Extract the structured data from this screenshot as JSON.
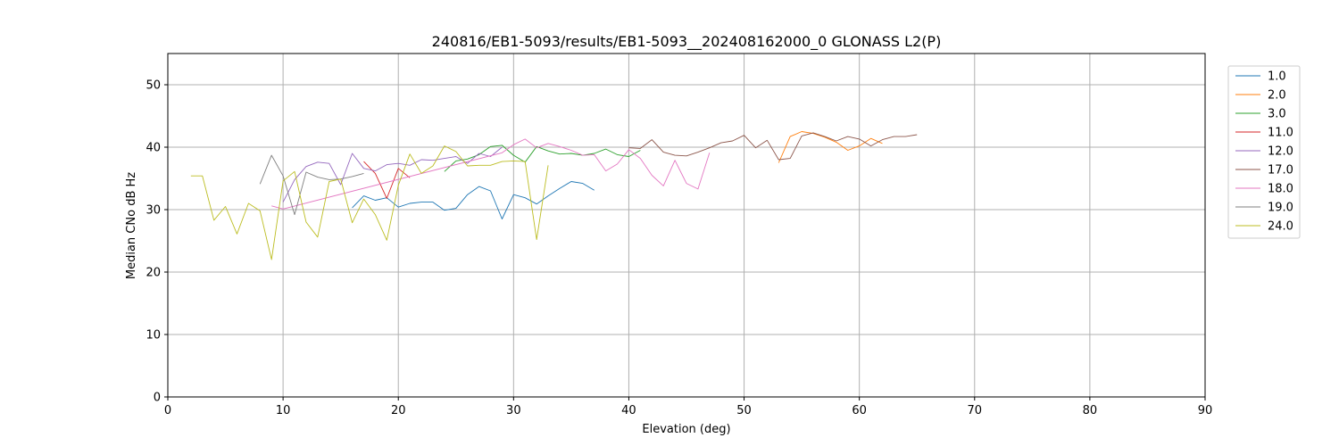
{
  "chart_data": {
    "type": "line",
    "title": "240816/EB1-5093/results/EB1-5093__202408162000_0 GLONASS L2(P)",
    "xlabel": "Elevation (deg)",
    "ylabel": "Median CNo dB Hz",
    "xlim": [
      0,
      90
    ],
    "ylim": [
      0,
      55
    ],
    "xticks": [
      0,
      10,
      20,
      30,
      40,
      50,
      60,
      70,
      80,
      90
    ],
    "yticks": [
      0,
      10,
      20,
      30,
      40,
      50
    ],
    "grid": true,
    "legend_position": "upper-right-outside",
    "series": [
      {
        "name": "1.0",
        "color": "#1f77b4",
        "x": [
          16,
          17,
          18,
          19,
          20,
          21,
          22,
          23,
          24,
          25,
          26,
          27,
          28,
          29,
          30,
          31,
          32,
          33,
          34,
          35,
          36,
          37
        ],
        "y": [
          30.3,
          32.2,
          31.5,
          31.9,
          30.4,
          31.0,
          31.2,
          31.2,
          29.9,
          30.2,
          32.4,
          33.7,
          33.0,
          28.5,
          32.4,
          31.9,
          30.9,
          32.2,
          33.4,
          34.5,
          34.2,
          33.1
        ]
      },
      {
        "name": "2.0",
        "color": "#ff7f0e",
        "x": [
          53,
          54,
          55,
          56,
          57,
          58,
          59,
          60,
          61,
          62
        ],
        "y": [
          37.5,
          41.7,
          42.5,
          42.2,
          41.6,
          40.8,
          39.5,
          40.2,
          41.4,
          40.6
        ]
      },
      {
        "name": "3.0",
        "color": "#2ca02c",
        "x": [
          24,
          25,
          26,
          27,
          28,
          29,
          30,
          31,
          32,
          33,
          34,
          35,
          36,
          37,
          38,
          39,
          40,
          41
        ],
        "y": [
          36.1,
          37.8,
          38.1,
          38.8,
          40.1,
          40.3,
          38.7,
          37.6,
          40.1,
          39.4,
          38.9,
          39.0,
          38.7,
          39.0,
          39.7,
          38.8,
          38.5,
          39.5
        ]
      },
      {
        "name": "11.0",
        "color": "#d62728",
        "x": [
          17,
          18,
          19,
          20,
          21
        ],
        "y": [
          37.7,
          35.8,
          31.8,
          36.6,
          35.1
        ]
      },
      {
        "name": "12.0",
        "color": "#9467bd",
        "x": [
          10,
          11,
          12,
          13,
          14,
          15,
          16,
          17,
          18,
          19,
          20,
          21,
          22,
          23,
          24,
          25,
          26,
          27,
          28,
          29
        ],
        "y": [
          31.2,
          34.8,
          36.9,
          37.6,
          37.4,
          34.0,
          39.0,
          36.6,
          36.2,
          37.2,
          37.4,
          37.1,
          38.0,
          37.9,
          38.2,
          38.5,
          37.4,
          39.0,
          38.5,
          40.0
        ]
      },
      {
        "name": "17.0",
        "color": "#8c564b",
        "x": [
          40,
          41,
          42,
          43,
          44,
          45,
          46,
          47,
          48,
          49,
          50,
          51,
          52,
          53,
          54,
          55,
          56,
          57,
          58,
          59,
          60,
          61,
          62,
          63,
          64,
          65
        ],
        "y": [
          39.9,
          39.8,
          41.2,
          39.2,
          38.7,
          38.6,
          39.2,
          39.9,
          40.7,
          41.0,
          41.9,
          39.9,
          41.1,
          38.0,
          38.2,
          41.8,
          42.3,
          41.7,
          41.0,
          41.7,
          41.3,
          40.2,
          41.2,
          41.7,
          41.7,
          42.0
        ]
      },
      {
        "name": "18.0",
        "color": "#e377c2",
        "x": [
          9,
          10,
          29,
          30,
          31,
          32,
          33,
          34,
          35,
          36,
          37,
          38,
          39,
          40,
          41,
          42,
          43,
          44,
          45,
          46,
          47
        ],
        "y": [
          30.6,
          30.1,
          39.1,
          40.4,
          41.3,
          39.9,
          40.6,
          40.1,
          39.5,
          38.7,
          38.8,
          36.2,
          37.3,
          39.6,
          38.2,
          35.5,
          33.8,
          37.9,
          34.2,
          33.3,
          39.1
        ]
      },
      {
        "name": "19.0",
        "color": "#7f7f7f",
        "x": [
          8,
          9,
          10,
          11,
          12,
          13,
          14,
          15,
          16,
          17
        ],
        "y": [
          34.1,
          38.7,
          35.4,
          29.2,
          36.0,
          35.2,
          34.8,
          34.9,
          35.3,
          35.8
        ]
      },
      {
        "name": "24.0",
        "color": "#bcbd22",
        "x": [
          2,
          3,
          4,
          5,
          6,
          7,
          8,
          9,
          10,
          11,
          12,
          13,
          14,
          15,
          16,
          17,
          18,
          19,
          20,
          21,
          22,
          23,
          24,
          25,
          26,
          27,
          28,
          29,
          30,
          31,
          32,
          33
        ],
        "y": [
          35.4,
          35.4,
          28.3,
          30.5,
          26.1,
          31.0,
          29.8,
          22.0,
          34.6,
          36.1,
          28.0,
          25.6,
          34.5,
          34.9,
          27.9,
          31.7,
          29.2,
          25.1,
          33.9,
          38.9,
          35.8,
          37.0,
          40.2,
          39.3,
          37.0,
          37.1,
          37.1,
          37.7,
          37.8,
          37.7,
          25.2,
          37.1
        ]
      }
    ]
  }
}
